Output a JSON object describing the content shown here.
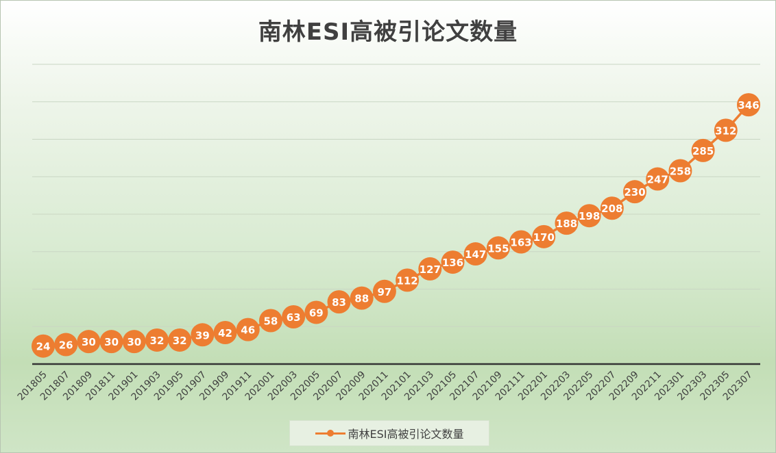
{
  "chart_data": {
    "type": "line",
    "title": "南林ESI高被引论文数量",
    "xlabel": "",
    "ylabel": "",
    "ylim": [
      0,
      400
    ],
    "grid": true,
    "legend_position": "bottom",
    "categories": [
      "201805",
      "201807",
      "201809",
      "201811",
      "201901",
      "201903",
      "201905",
      "201907",
      "201909",
      "201911",
      "202001",
      "202003",
      "202005",
      "202007",
      "202009",
      "202011",
      "202101",
      "202103",
      "202105",
      "202107",
      "202109",
      "202111",
      "202201",
      "202203",
      "202205",
      "202207",
      "202209",
      "202211",
      "202301",
      "202303",
      "202305",
      "202307"
    ],
    "series": [
      {
        "name": "南林ESI高被引论文数量",
        "color": "#ed7d31",
        "values": [
          24,
          26,
          30,
          30,
          30,
          32,
          32,
          39,
          42,
          46,
          58,
          63,
          69,
          83,
          88,
          97,
          112,
          127,
          136,
          147,
          155,
          163,
          170,
          188,
          198,
          208,
          230,
          247,
          258,
          285,
          312,
          346
        ]
      }
    ]
  }
}
